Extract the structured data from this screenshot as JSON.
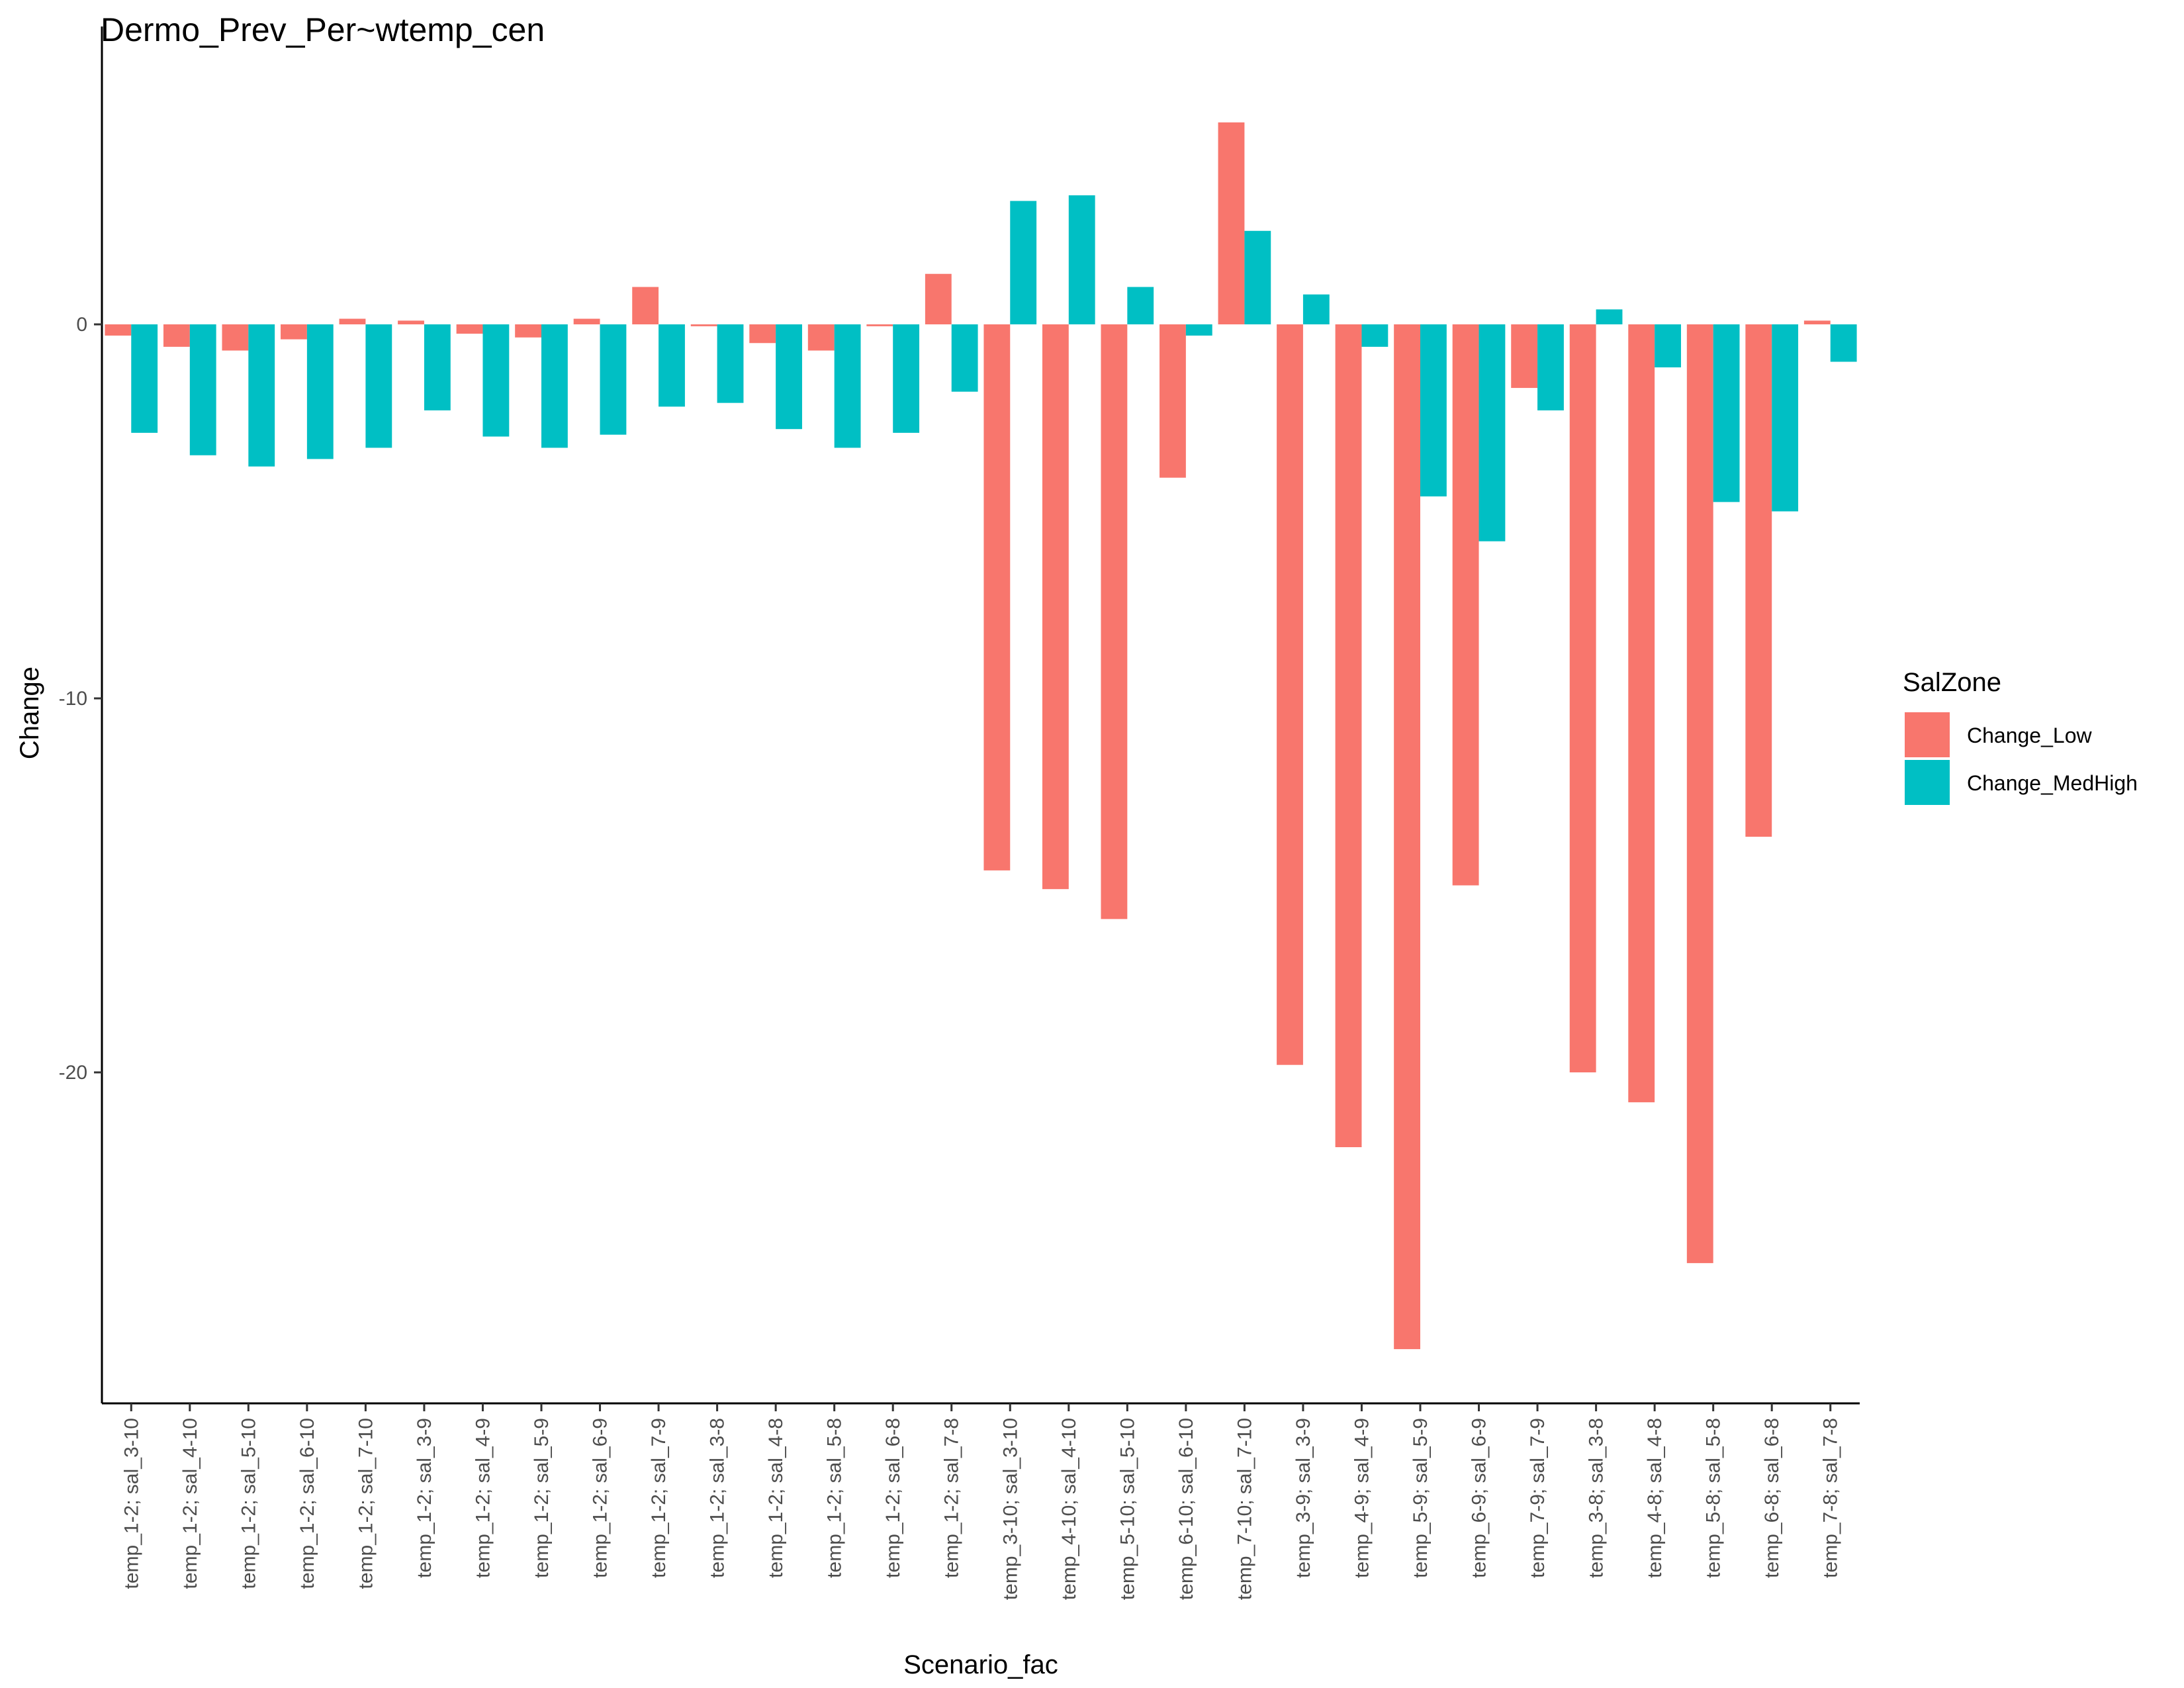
{
  "chart_data": {
    "type": "bar",
    "title": "Dermo_Prev_Per~wtemp_cen",
    "xlabel": "Scenario_fac",
    "ylabel": "Change",
    "ylim": [
      -29,
      5.5
    ],
    "yticks": [
      0,
      -10,
      -20
    ],
    "grid": false,
    "legend": {
      "title": "SalZone",
      "position": "right"
    },
    "categories": [
      "temp_1-2; sal_3-10",
      "temp_1-2; sal_4-10",
      "temp_1-2; sal_5-10",
      "temp_1-2; sal_6-10",
      "temp_1-2; sal_7-10",
      "temp_1-2; sal_3-9",
      "temp_1-2; sal_4-9",
      "temp_1-2; sal_5-9",
      "temp_1-2; sal_6-9",
      "temp_1-2; sal_7-9",
      "temp_1-2; sal_3-8",
      "temp_1-2; sal_4-8",
      "temp_1-2; sal_5-8",
      "temp_1-2; sal_6-8",
      "temp_1-2; sal_7-8",
      "temp_3-10; sal_3-10",
      "temp_4-10; sal_4-10",
      "temp_5-10; sal_5-10",
      "temp_6-10; sal_6-10",
      "temp_7-10; sal_7-10",
      "temp_3-9; sal_3-9",
      "temp_4-9; sal_4-9",
      "temp_5-9; sal_5-9",
      "temp_6-9; sal_6-9",
      "temp_7-9; sal_7-9",
      "temp_3-8; sal_3-8",
      "temp_4-8; sal_4-8",
      "temp_5-8; sal_5-8",
      "temp_6-8; sal_6-8",
      "temp_7-8; sal_7-8"
    ],
    "series": [
      {
        "name": "Change_Low",
        "color": "#F8766D",
        "values": [
          -0.3,
          -0.6,
          -0.7,
          -0.4,
          0.15,
          0.1,
          -0.25,
          -0.35,
          0.15,
          1.0,
          -0.05,
          -0.5,
          -0.7,
          -0.05,
          1.35,
          -14.6,
          -15.1,
          -15.9,
          -4.1,
          5.4,
          -19.8,
          -22.0,
          -27.4,
          -15.0,
          -1.7,
          -20.0,
          -20.8,
          -25.1,
          -13.7,
          0.1
        ]
      },
      {
        "name": "Change_MedHigh",
        "color": "#00BFC4",
        "values": [
          -2.9,
          -3.5,
          -3.8,
          -3.6,
          -3.3,
          -2.3,
          -3.0,
          -3.3,
          -2.95,
          -2.2,
          -2.1,
          -2.8,
          -3.3,
          -2.9,
          -1.8,
          3.3,
          3.45,
          1.0,
          -0.3,
          2.5,
          0.8,
          -0.6,
          -4.6,
          -5.8,
          -2.3,
          0.4,
          -1.15,
          -4.75,
          -5.0,
          -1.0
        ]
      }
    ]
  }
}
